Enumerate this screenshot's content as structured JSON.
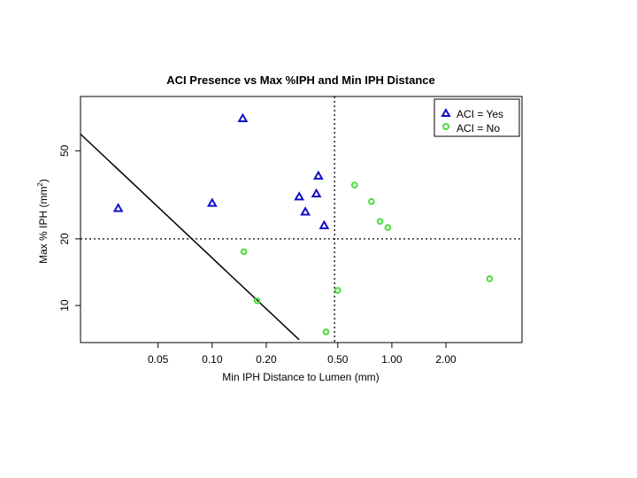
{
  "chart_data": {
    "type": "scatter",
    "title": "ACI Presence vs Max %IPH and Min IPH Distance",
    "xlabel": "Min IPH Distance to Lumen (mm)",
    "ylabel_main": "Max % IPH (mm",
    "ylabel_sup": "2",
    "ylabel_end": ")",
    "x_scale": "log",
    "y_scale": "log",
    "xlim": [
      0.0185,
      5.3
    ],
    "ylim": [
      6.8,
      88
    ],
    "x_ticks": [
      0.05,
      0.1,
      0.2,
      0.5,
      1.0,
      2.0
    ],
    "x_tick_labels": [
      "0.05",
      "0.10",
      "0.20",
      "0.50",
      "1.00",
      "2.00"
    ],
    "y_ticks": [
      10,
      20,
      50
    ],
    "y_tick_labels": [
      "10",
      "20",
      "50"
    ],
    "reference_lines": {
      "vertical_x": 0.48,
      "horizontal_y": 20,
      "diagonal": [
        [
          0.0185,
          59.5
        ],
        [
          0.305,
          7.0
        ]
      ]
    },
    "series": [
      {
        "name": "ACI = Yes",
        "marker": "triangle",
        "color": "#1010c8",
        "points": [
          [
            0.03,
            27.5
          ],
          [
            0.1,
            29
          ],
          [
            0.148,
            70
          ],
          [
            0.305,
            31
          ],
          [
            0.33,
            26.5
          ],
          [
            0.38,
            32
          ],
          [
            0.39,
            38.5
          ],
          [
            0.42,
            23
          ]
        ]
      },
      {
        "name": "ACI = No",
        "marker": "circle",
        "color": "#4bdc3c",
        "points": [
          [
            0.15,
            17.5
          ],
          [
            0.178,
            10.5
          ],
          [
            0.43,
            7.6
          ],
          [
            0.5,
            11.7
          ],
          [
            0.62,
            35
          ],
          [
            0.77,
            29.5
          ],
          [
            0.86,
            24
          ],
          [
            0.95,
            22.5
          ],
          [
            3.5,
            13.2
          ]
        ]
      }
    ],
    "legend": {
      "position": "top-right",
      "entries": [
        "ACI = Yes",
        "ACI = No"
      ]
    }
  }
}
